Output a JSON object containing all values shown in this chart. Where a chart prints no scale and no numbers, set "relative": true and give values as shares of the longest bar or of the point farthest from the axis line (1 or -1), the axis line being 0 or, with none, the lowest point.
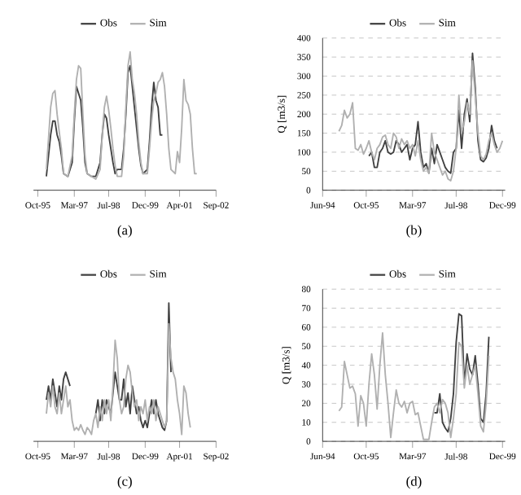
{
  "chart_data": [
    {
      "type": "line",
      "relative": true,
      "tick_labels": "x",
      "legend": "top",
      "line_style": "solid",
      "marker": "none",
      "annotations": [
        "(a)"
      ],
      "xlim": [
        "1995-08",
        "2002-09"
      ],
      "xticks": [
        {
          "value": "1995-10",
          "label": "Oct-95"
        },
        {
          "value": "1997-03",
          "label": "Mar-97"
        },
        {
          "value": "1998-07",
          "label": "Jul-98"
        },
        {
          "value": "1999-12",
          "label": "Dec-99"
        },
        {
          "value": "2001-04",
          "label": "Apr-01"
        },
        {
          "value": "2002-09",
          "label": "Sep-02"
        }
      ],
      "series": [
        {
          "name": "Obs",
          "color": "#404040",
          "x": [
            "1996-02",
            "1996-04",
            "1996-05",
            "1996-06",
            "1996-07",
            "1996-08",
            "1996-09",
            "1996-10",
            "1996-12",
            "1997-02",
            "1997-03",
            "1997-04",
            "1997-05",
            "1997-06",
            "1997-07",
            "1997-08",
            "1997-09",
            "1997-11",
            "1998-01",
            "1998-03",
            "1998-04",
            "1998-05",
            "1998-06",
            "1998-07",
            "1998-08",
            "1998-09",
            "1998-10",
            "1998-11",
            "1999-01",
            "1999-02",
            "1999-03",
            "1999-04",
            "1999-05",
            "1999-06",
            "1999-07",
            "1999-08",
            "1999-09",
            "1999-10",
            "1999-11",
            "2000-01",
            "2000-02",
            "2000-03",
            "2000-04",
            "2000-05",
            "2000-06",
            "2000-07",
            "2000-08"
          ],
          "values": [
            0.1,
            0.4,
            0.5,
            0.5,
            0.4,
            0.35,
            0.25,
            0.12,
            0.1,
            0.2,
            0.5,
            0.75,
            0.7,
            0.65,
            0.45,
            0.2,
            0.12,
            0.1,
            0.1,
            0.2,
            0.4,
            0.55,
            0.52,
            0.4,
            0.3,
            0.2,
            0.12,
            0.15,
            0.15,
            0.3,
            0.55,
            0.85,
            0.9,
            0.75,
            0.6,
            0.45,
            0.3,
            0.18,
            0.12,
            0.15,
            0.35,
            0.6,
            0.78,
            0.65,
            0.6,
            0.4,
            0.4
          ]
        },
        {
          "name": "Sim",
          "color": "#b0b0b0",
          "x": [
            "1996-02",
            "1996-04",
            "1996-05",
            "1996-06",
            "1996-07",
            "1996-08",
            "1996-09",
            "1996-10",
            "1996-12",
            "1997-02",
            "1997-03",
            "1997-04",
            "1997-05",
            "1997-06",
            "1997-07",
            "1997-08",
            "1997-09",
            "1997-11",
            "1998-01",
            "1998-03",
            "1998-04",
            "1998-05",
            "1998-06",
            "1998-07",
            "1998-08",
            "1998-09",
            "1998-10",
            "1998-11",
            "1999-01",
            "1999-02",
            "1999-03",
            "1999-04",
            "1999-05",
            "1999-06",
            "1999-07",
            "1999-08",
            "1999-09",
            "1999-10",
            "1999-11",
            "2000-01",
            "2000-02",
            "2000-03",
            "2000-04",
            "2000-05",
            "2000-06",
            "2000-07",
            "2000-08",
            "2000-09",
            "2000-10",
            "2000-11",
            "2000-12",
            "2001-02",
            "2001-03",
            "2001-04",
            "2001-05",
            "2001-06",
            "2001-07",
            "2001-08",
            "2001-09",
            "2001-10",
            "2001-11",
            "2001-12"
          ],
          "values": [
            0.15,
            0.6,
            0.7,
            0.72,
            0.55,
            0.42,
            0.3,
            0.12,
            0.1,
            0.25,
            0.55,
            0.8,
            0.9,
            0.88,
            0.55,
            0.25,
            0.12,
            0.1,
            0.08,
            0.15,
            0.4,
            0.6,
            0.68,
            0.58,
            0.45,
            0.3,
            0.18,
            0.1,
            0.1,
            0.25,
            0.6,
            0.9,
            1.0,
            0.8,
            0.7,
            0.55,
            0.35,
            0.2,
            0.12,
            0.12,
            0.3,
            0.5,
            0.65,
            0.7,
            0.78,
            0.8,
            0.85,
            0.75,
            0.55,
            0.3,
            0.15,
            0.12,
            0.28,
            0.2,
            0.45,
            0.8,
            0.65,
            0.62,
            0.55,
            0.3,
            0.12,
            0.12
          ]
        }
      ]
    },
    {
      "type": "line",
      "ylabel": "Q [m3/s]",
      "grid": "y",
      "legend": "top",
      "line_style": "solid",
      "marker": "none",
      "annotations": [
        "(b)"
      ],
      "xlim": [
        "1994-06",
        "2000-01"
      ],
      "ylim": [
        0,
        400
      ],
      "yticks": [
        0,
        50,
        100,
        150,
        200,
        250,
        300,
        350,
        400
      ],
      "xticks": [
        {
          "value": "1994-06",
          "label": "Jun-94"
        },
        {
          "value": "1995-10",
          "label": "Oct-95"
        },
        {
          "value": "1997-03",
          "label": "Mar-97"
        },
        {
          "value": "1998-07",
          "label": "Jul-98"
        },
        {
          "value": "1999-12",
          "label": "Dec-99"
        }
      ],
      "series": [
        {
          "name": "Obs",
          "color": "#404040",
          "x": [
            "1995-11",
            "1995-12",
            "1996-01",
            "1996-02",
            "1996-03",
            "1996-04",
            "1996-05",
            "1996-06",
            "1996-07",
            "1996-08",
            "1996-09",
            "1996-10",
            "1996-11",
            "1996-12",
            "1997-01",
            "1997-02",
            "1997-03",
            "1997-04",
            "1997-05",
            "1997-06",
            "1997-07",
            "1997-08",
            "1997-09",
            "1997-10",
            "1997-11",
            "1997-12",
            "1998-01",
            "1998-02",
            "1998-03",
            "1998-04",
            "1998-05",
            "1998-06",
            "1998-07",
            "1998-08",
            "1998-09",
            "1998-10",
            "1998-11",
            "1998-12",
            "1999-01",
            "1999-02",
            "1999-03",
            "1999-04",
            "1999-05",
            "1999-06",
            "1999-07",
            "1999-08",
            "1999-09",
            "1999-10"
          ],
          "values": [
            90,
            100,
            60,
            60,
            100,
            110,
            130,
            100,
            95,
            100,
            130,
            120,
            100,
            110,
            120,
            80,
            110,
            120,
            180,
            100,
            60,
            70,
            45,
            110,
            70,
            120,
            100,
            80,
            60,
            50,
            45,
            100,
            110,
            210,
            110,
            200,
            240,
            180,
            360,
            270,
            130,
            80,
            75,
            85,
            110,
            170,
            130,
            110
          ]
        },
        {
          "name": "Sim",
          "color": "#b0b0b0",
          "x": [
            "1994-12",
            "1995-01",
            "1995-02",
            "1995-03",
            "1995-04",
            "1995-05",
            "1995-06",
            "1995-07",
            "1995-08",
            "1995-09",
            "1995-10",
            "1995-11",
            "1995-12",
            "1996-01",
            "1996-02",
            "1996-03",
            "1996-04",
            "1996-05",
            "1996-06",
            "1996-07",
            "1996-08",
            "1996-09",
            "1996-10",
            "1996-11",
            "1996-12",
            "1997-01",
            "1997-02",
            "1997-03",
            "1997-04",
            "1997-05",
            "1997-06",
            "1997-07",
            "1997-08",
            "1997-09",
            "1997-10",
            "1997-11",
            "1997-12",
            "1998-01",
            "1998-02",
            "1998-03",
            "1998-04",
            "1998-05",
            "1998-06",
            "1998-07",
            "1998-08",
            "1998-09",
            "1998-10",
            "1998-11",
            "1998-12",
            "1999-01",
            "1999-02",
            "1999-03",
            "1999-04",
            "1999-05",
            "1999-06",
            "1999-07",
            "1999-08",
            "1999-09",
            "1999-10",
            "1999-11",
            "1999-12"
          ],
          "values": [
            155,
            170,
            210,
            190,
            200,
            230,
            110,
            105,
            120,
            95,
            110,
            130,
            100,
            80,
            110,
            120,
            140,
            145,
            120,
            110,
            150,
            140,
            110,
            135,
            120,
            130,
            110,
            120,
            90,
            130,
            80,
            50,
            60,
            45,
            150,
            100,
            80,
            60,
            40,
            50,
            30,
            25,
            50,
            110,
            250,
            150,
            180,
            230,
            200,
            340,
            250,
            150,
            90,
            80,
            95,
            130,
            150,
            120,
            100,
            110,
            130
          ]
        }
      ]
    },
    {
      "type": "line",
      "relative": true,
      "tick_labels": "x",
      "legend": "top",
      "line_style": "solid",
      "marker": "none",
      "annotations": [
        "(c)"
      ],
      "xlim": [
        "1995-08",
        "2002-09"
      ],
      "xticks": [
        {
          "value": "1995-10",
          "label": "Oct-95"
        },
        {
          "value": "1997-03",
          "label": "Mar-97"
        },
        {
          "value": "1998-07",
          "label": "Jul-98"
        },
        {
          "value": "1999-12",
          "label": "Dec-99"
        },
        {
          "value": "2001-04",
          "label": "Apr-01"
        },
        {
          "value": "2002-09",
          "label": "Sep-02"
        }
      ],
      "series": [
        {
          "name": "Obs",
          "color": "#404040",
          "x": [
            "1996-02",
            "1996-03",
            "1996-04",
            "1996-05",
            "1996-06",
            "1996-07",
            "1996-08",
            "1996-09",
            "1996-10",
            "1996-11",
            "1996-12",
            "1997-01",
            "1997-06",
            "1998-01",
            "1998-02",
            "1998-03",
            "1998-04",
            "1998-05",
            "1998-06",
            "1998-07",
            "1998-08",
            "1998-09",
            "1998-10",
            "1998-11",
            "1998-12",
            "1999-01",
            "1999-02",
            "1999-03",
            "1999-04",
            "1999-05",
            "1999-06",
            "1999-07",
            "1999-08",
            "1999-09",
            "1999-10",
            "1999-11",
            "1999-12",
            "2000-01",
            "2000-02",
            "2000-03",
            "2000-04",
            "2000-05",
            "2000-06",
            "2000-07",
            "2000-08",
            "2000-09",
            "2000-10",
            "2000-11",
            "2000-12"
          ],
          "values": [
            0.3,
            0.4,
            0.3,
            0.45,
            0.35,
            0.25,
            0.4,
            0.3,
            0.45,
            0.5,
            0.45,
            0.4,
            null,
            0.2,
            0.3,
            0.15,
            0.3,
            0.2,
            0.3,
            0.25,
            0.2,
            0.35,
            0.5,
            0.4,
            0.3,
            0.3,
            0.45,
            0.25,
            0.35,
            0.2,
            0.4,
            0.3,
            0.2,
            0.25,
            0.15,
            0.1,
            0.15,
            0.1,
            0.2,
            0.3,
            0.2,
            0.3,
            0.2,
            0.15,
            0.1,
            0.08,
            0.15,
            1.0,
            0.5
          ]
        },
        {
          "name": "Sim",
          "color": "#b0b0b0",
          "x": [
            "1996-02",
            "1996-03",
            "1996-04",
            "1996-05",
            "1996-06",
            "1996-07",
            "1996-08",
            "1996-09",
            "1996-10",
            "1996-11",
            "1996-12",
            "1997-01",
            "1997-02",
            "1997-03",
            "1997-04",
            "1997-05",
            "1997-06",
            "1997-07",
            "1997-08",
            "1997-09",
            "1997-10",
            "1997-11",
            "1997-12",
            "1998-01",
            "1998-02",
            "1998-03",
            "1998-04",
            "1998-05",
            "1998-06",
            "1998-07",
            "1998-08",
            "1998-09",
            "1998-10",
            "1998-11",
            "1998-12",
            "1999-01",
            "1999-02",
            "1999-03",
            "1999-04",
            "1999-05",
            "1999-06",
            "1999-07",
            "1999-08",
            "1999-09",
            "1999-10",
            "1999-11",
            "1999-12",
            "2000-01",
            "2000-02",
            "2000-03",
            "2000-04",
            "2000-05",
            "2000-06",
            "2000-07",
            "2000-08",
            "2000-09",
            "2000-10",
            "2000-11",
            "2000-12",
            "2001-01",
            "2001-02",
            "2001-03",
            "2001-04",
            "2001-05",
            "2001-06",
            "2001-07",
            "2001-08",
            "2001-09"
          ],
          "values": [
            0.2,
            0.35,
            0.25,
            0.4,
            0.25,
            0.2,
            0.35,
            0.2,
            0.3,
            0.4,
            0.25,
            0.3,
            0.15,
            0.08,
            0.1,
            0.08,
            0.12,
            0.08,
            0.05,
            0.1,
            0.08,
            0.05,
            0.15,
            0.2,
            0.1,
            0.25,
            0.15,
            0.3,
            0.2,
            0.3,
            0.15,
            0.4,
            0.73,
            0.6,
            0.3,
            0.2,
            0.25,
            0.45,
            0.55,
            0.5,
            0.35,
            0.25,
            0.3,
            0.15,
            0.25,
            0.2,
            0.3,
            0.15,
            0.25,
            0.2,
            0.3,
            0.15,
            0.25,
            0.2,
            0.15,
            0.1,
            0.15,
            0.85,
            0.6,
            0.5,
            0.45,
            0.3,
            0.2,
            0.05,
            0.4,
            0.35,
            0.2,
            0.1
          ]
        }
      ]
    },
    {
      "type": "line",
      "ylabel": "Q [m3/s]",
      "grid": "y",
      "legend": "top",
      "line_style": "solid",
      "marker": "none",
      "annotations": [
        "(d)"
      ],
      "xlim": [
        "1994-06",
        "2000-01"
      ],
      "ylim": [
        0,
        80
      ],
      "yticks": [
        0,
        10,
        20,
        30,
        40,
        50,
        60,
        70,
        80
      ],
      "xticks": [
        {
          "value": "1994-06",
          "label": "Jun-94"
        },
        {
          "value": "1995-10",
          "label": "Oct-95"
        },
        {
          "value": "1997-03",
          "label": "Mar-97"
        },
        {
          "value": "1998-07",
          "label": "Jul-98"
        },
        {
          "value": "1999-12",
          "label": "Dec-99"
        }
      ],
      "series": [
        {
          "name": "Obs",
          "color": "#404040",
          "x": [
            "1997-11",
            "1997-12",
            "1998-01",
            "1998-02",
            "1998-03",
            "1998-04",
            "1998-05",
            "1998-06",
            "1998-07",
            "1998-08",
            "1998-09",
            "1998-10",
            "1998-11",
            "1998-12",
            "1999-01",
            "1999-02",
            "1999-03",
            "1999-04",
            "1999-05",
            "1999-06",
            "1999-07"
          ],
          "values": [
            15,
            15,
            25,
            10,
            7,
            5,
            12,
            25,
            52,
            67,
            66,
            30,
            46,
            38,
            35,
            45,
            30,
            12,
            10,
            25,
            55
          ]
        },
        {
          "name": "Sim",
          "color": "#b0b0b0",
          "x": [
            "1994-12",
            "1995-01",
            "1995-02",
            "1995-03",
            "1995-04",
            "1995-05",
            "1995-06",
            "1995-07",
            "1995-08",
            "1995-09",
            "1995-10",
            "1995-11",
            "1995-12",
            "1996-01",
            "1996-02",
            "1996-03",
            "1996-04",
            "1996-05",
            "1996-06",
            "1996-07",
            "1996-08",
            "1996-09",
            "1996-10",
            "1996-11",
            "1996-12",
            "1997-01",
            "1997-02",
            "1997-03",
            "1997-04",
            "1997-05",
            "1997-06",
            "1997-07",
            "1997-08",
            "1997-09",
            "1997-10",
            "1997-11",
            "1997-12",
            "1998-01",
            "1998-02",
            "1998-03",
            "1998-04",
            "1998-05",
            "1998-06",
            "1998-07",
            "1998-08",
            "1998-09",
            "1998-10",
            "1998-11",
            "1998-12",
            "1999-01",
            "1999-02",
            "1999-03",
            "1999-04",
            "1999-05",
            "1999-06",
            "1999-07"
          ],
          "values": [
            16,
            18,
            42,
            35,
            28,
            29,
            25,
            8,
            24,
            20,
            8,
            30,
            46,
            35,
            17,
            40,
            57,
            35,
            20,
            2,
            15,
            27,
            20,
            18,
            21,
            15,
            20,
            21,
            14,
            15,
            8,
            1,
            1,
            1,
            10,
            18,
            20,
            15,
            22,
            20,
            15,
            2,
            12,
            25,
            52,
            50,
            28,
            40,
            30,
            35,
            40,
            25,
            8,
            5,
            20,
            45
          ]
        }
      ]
    }
  ]
}
